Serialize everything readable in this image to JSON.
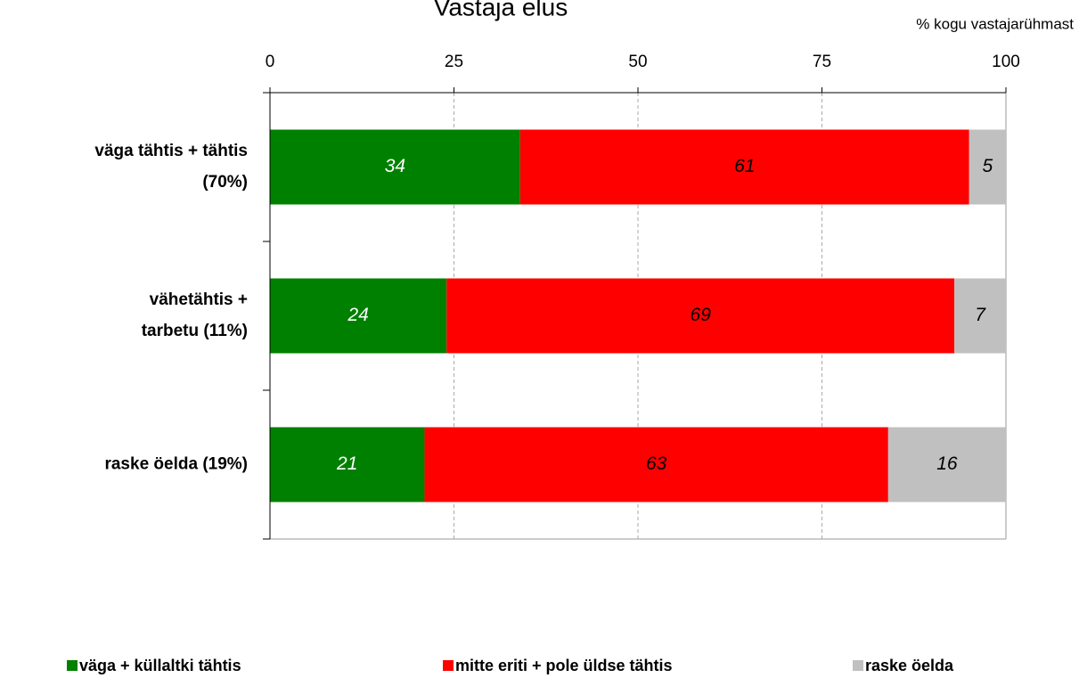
{
  "chart_data": {
    "type": "stacked-bar-horizontal",
    "title": "Vastaja elus",
    "axis_label": "% kogu vastajarühmast",
    "categories": [
      [
        "väga tähtis + tähtis",
        "(70%)"
      ],
      [
        "vähetähtis +",
        "tarbetu  (11%)"
      ],
      [
        "raske öelda (19%)"
      ]
    ],
    "series": [
      {
        "name": "väga + küllaltki tähtis",
        "color": "#008000",
        "label_color": "#ffffff",
        "values": [
          34,
          24,
          21
        ]
      },
      {
        "name": "mitte eriti  + pole üldse tähtis",
        "color": "#ff0000",
        "label_color": "#000000",
        "values": [
          61,
          69,
          63
        ]
      },
      {
        "name": "raske öelda",
        "color": "#c0c0c0",
        "label_color": "#000000",
        "values": [
          5,
          7,
          16
        ]
      }
    ],
    "xlim": [
      0,
      100
    ],
    "xticks": [
      0,
      25,
      50,
      75,
      100
    ],
    "grid": true
  }
}
